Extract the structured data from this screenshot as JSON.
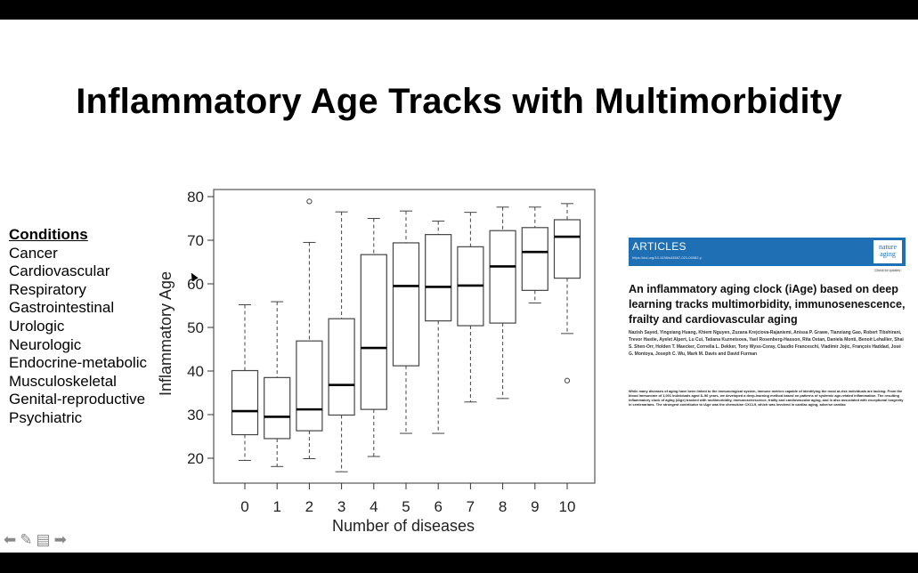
{
  "slide": {
    "title": "Inflammatory Age Tracks with Multimorbidity",
    "conditions": {
      "heading": "Conditions",
      "items": [
        "Cancer",
        "Cardiovascular",
        "Respiratory",
        "Gastrointestinal",
        "Urologic",
        "Neurologic",
        "Endocrine-metabolic",
        "Musculoskeletal",
        "Genital-reproductive",
        "Psychiatric"
      ]
    }
  },
  "article": {
    "section": "ARTICLES",
    "doi": "https://doi.org/10.1038/s43587-021-00082-y",
    "journal": "nature aging",
    "check_updates": "Check for updates",
    "title": "An inflammatory aging clock (iAge) based on deep learning tracks multimorbidity, immunosenescence, frailty and cardiovascular aging",
    "authors": "Nazish Sayed, Yingxiang Huang, Khiem Nguyen, Zuzana Krejciova-Rajaniemi, Anissa P. Grawe, Tianxiang Gao, Robert Tibshirani, Trevor Hastie, Ayelet Alpert, Lu Cui, Tatiana Kuznetsova, Yael Rosenberg-Hasson, Rita Ostan, Daniela Monti, Benoit Lehallier, Shai S. Shen-Orr, Holden T. Maecker, Cornelia L. Dekker, Tony Wyss-Coray, Claudio Franceschi, Vladimir Jojic, François Haddad, José G. Montoya, Joseph C. Wu, Mark M. Davis and David Furman",
    "abstract": "While many diseases of aging have been linked to the immunological system, immune metrics capable of identifying the most at-risk individuals are lacking. From the blood immunome of 1,001 individuals aged 8–96 years, we developed a deep-learning method based on patterns of systemic age-related inflammation. The resulting inflammatory clock of aging (iAge) tracked with multimorbidity, immunosenescence, frailty and cardiovascular aging, and is also associated with exceptional longevity in centenarians. The strongest contributor to iAge was the chemokine CXCL9, which was involved in cardiac aging, adverse cardiac"
  },
  "nav": {
    "icons": [
      "arrow-left-icon",
      "pen-icon",
      "notes-icon",
      "arrow-right-icon"
    ],
    "glyphs": [
      "⬅",
      "✎",
      "▤",
      "➡"
    ]
  },
  "chart_data": {
    "type": "box",
    "xlabel": "Number of diseases",
    "ylabel": "Inflammatory Age",
    "categories": [
      "0",
      "1",
      "2",
      "3",
      "4",
      "5",
      "6",
      "7",
      "8",
      "9",
      "10"
    ],
    "ylim": [
      14,
      82
    ],
    "yticks": [
      20,
      30,
      40,
      50,
      60,
      70,
      80
    ],
    "grid": false,
    "boxes": [
      {
        "low": 19.5,
        "q1": 25.4,
        "median": 30.8,
        "q3": 40.1,
        "high": 55.2,
        "outliers": []
      },
      {
        "low": 18.1,
        "q1": 24.5,
        "median": 29.5,
        "q3": 38.5,
        "high": 55.9,
        "outliers": []
      },
      {
        "low": 19.9,
        "q1": 26.3,
        "median": 31.2,
        "q3": 46.9,
        "high": 69.5,
        "outliers": [
          78.9
        ]
      },
      {
        "low": 16.9,
        "q1": 29.9,
        "median": 36.8,
        "q3": 52.0,
        "high": 76.5,
        "outliers": []
      },
      {
        "low": 20.4,
        "q1": 31.2,
        "median": 45.3,
        "q3": 66.7,
        "high": 75.0,
        "outliers": []
      },
      {
        "low": 25.7,
        "q1": 41.2,
        "median": 59.5,
        "q3": 69.4,
        "high": 76.7,
        "outliers": []
      },
      {
        "low": 25.7,
        "q1": 51.5,
        "median": 59.3,
        "q3": 71.3,
        "high": 74.4,
        "outliers": []
      },
      {
        "low": 32.9,
        "q1": 50.4,
        "median": 59.6,
        "q3": 68.5,
        "high": 76.4,
        "outliers": []
      },
      {
        "low": 33.7,
        "q1": 51.0,
        "median": 64.0,
        "q3": 72.2,
        "high": 77.6,
        "outliers": []
      },
      {
        "low": 55.6,
        "q1": 58.5,
        "median": 67.3,
        "q3": 72.9,
        "high": 77.6,
        "outliers": []
      },
      {
        "low": 48.6,
        "q1": 61.3,
        "median": 70.8,
        "q3": 74.7,
        "high": 78.4,
        "outliers": [
          37.8
        ]
      }
    ]
  }
}
